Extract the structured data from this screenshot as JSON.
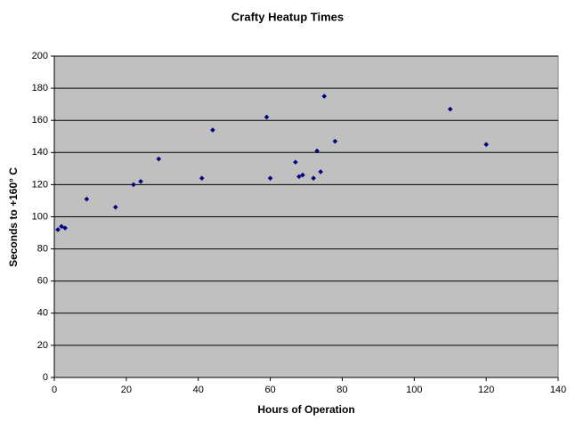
{
  "chart_data": {
    "type": "scatter",
    "title": "Crafty Heatup Times",
    "x_label": "Hours of Operation",
    "y_label": "Seconds to +160° C",
    "x": [
      1,
      2,
      3,
      9,
      17,
      22,
      24,
      29,
      41,
      44,
      59,
      60,
      67,
      68,
      69,
      72,
      73,
      74,
      75,
      78,
      110,
      120
    ],
    "values": [
      92,
      94,
      93,
      111,
      106,
      120,
      122,
      136,
      124,
      154,
      162,
      124,
      134,
      125,
      126,
      124,
      141,
      128,
      175,
      147,
      167,
      145
    ],
    "color": "#000080",
    "background": "#c0c0c0",
    "grid": true,
    "xlim": [
      0,
      140
    ],
    "xticks": [
      0,
      20,
      40,
      60,
      80,
      100,
      120,
      140
    ],
    "ylim": [
      0,
      200
    ],
    "yticks": [
      0,
      20,
      40,
      60,
      80,
      100,
      120,
      140,
      160,
      180,
      200
    ]
  }
}
